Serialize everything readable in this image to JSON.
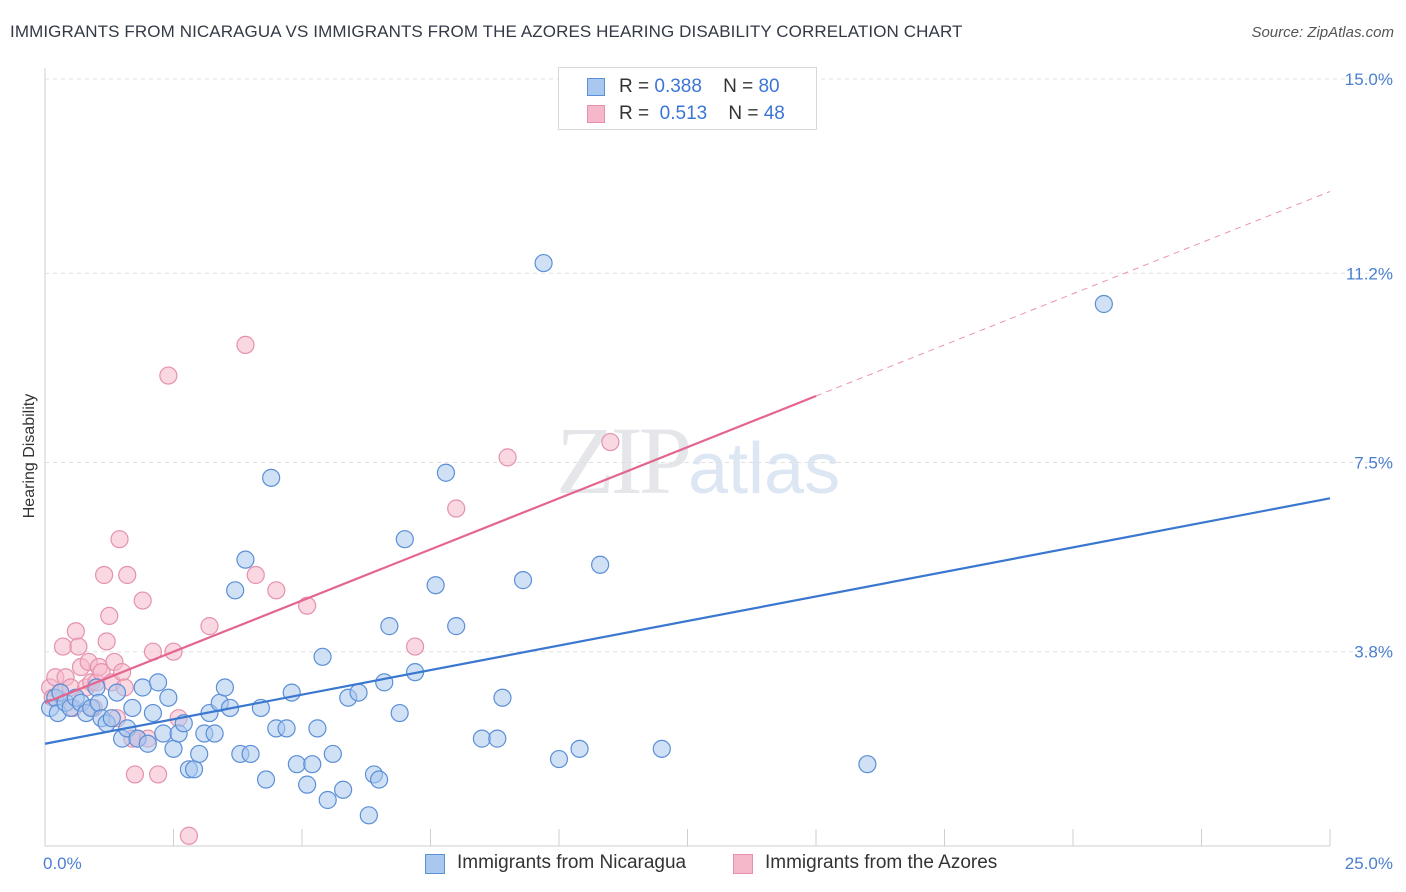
{
  "title": "IMMIGRANTS FROM NICARAGUA VS IMMIGRANTS FROM THE AZORES HEARING DISABILITY CORRELATION CHART",
  "source": "Source: ZipAtlas.com",
  "watermark": {
    "zip": "ZIP",
    "atlas": "atlas"
  },
  "colors": {
    "blue_fill": "#a9c8ef",
    "blue_stroke": "#5b8fd6",
    "blue_line": "#3a77cf",
    "pink_fill": "#f5b8cb",
    "pink_stroke": "#e591ad",
    "pink_line": "#e4658d",
    "grid": "#e0e0e0",
    "tick_text": "#4a7fd0"
  },
  "legend": {
    "rows": [
      {
        "r_label": "R =",
        "r_value": "0.388",
        "n_label": "N =",
        "n_value": "80"
      },
      {
        "r_label": "R =",
        "r_value": "0.513",
        "n_label": "N =",
        "n_value": "48"
      }
    ]
  },
  "bottom_legend": [
    "Immigrants from Nicaragua",
    "Immigrants from the Azores"
  ],
  "chart_data": {
    "type": "scatter",
    "title": "IMMIGRANTS FROM NICARAGUA VS IMMIGRANTS FROM THE AZORES HEARING DISABILITY CORRELATION CHART",
    "xlabel": "",
    "ylabel": "Hearing Disability",
    "xlim": [
      0,
      25
    ],
    "ylim": [
      0,
      15
    ],
    "x_tick_labels": [
      "0.0%",
      "25.0%"
    ],
    "y_ticks": [
      3.8,
      7.5,
      11.2,
      15.0
    ],
    "y_tick_labels": [
      "3.8%",
      "7.5%",
      "11.2%",
      "15.0%"
    ],
    "grid": true,
    "series": [
      {
        "name": "Immigrants from Nicaragua",
        "R": 0.388,
        "N": 80,
        "trend": {
          "x0": 0,
          "y0": 2.0,
          "x1": 25,
          "y1": 6.8,
          "solid_to": 25
        },
        "points": [
          [
            0.1,
            2.7
          ],
          [
            0.2,
            2.9
          ],
          [
            0.25,
            2.6
          ],
          [
            0.3,
            3.0
          ],
          [
            0.4,
            2.8
          ],
          [
            0.5,
            2.7
          ],
          [
            0.6,
            2.9
          ],
          [
            0.7,
            2.8
          ],
          [
            0.8,
            2.6
          ],
          [
            0.9,
            2.7
          ],
          [
            1.0,
            3.1
          ],
          [
            1.05,
            2.8
          ],
          [
            1.1,
            2.5
          ],
          [
            1.2,
            2.4
          ],
          [
            1.3,
            2.5
          ],
          [
            1.4,
            3.0
          ],
          [
            1.5,
            2.1
          ],
          [
            1.6,
            2.3
          ],
          [
            1.7,
            2.7
          ],
          [
            1.8,
            2.1
          ],
          [
            1.9,
            3.1
          ],
          [
            2.0,
            2.0
          ],
          [
            2.1,
            2.6
          ],
          [
            2.2,
            3.2
          ],
          [
            2.3,
            2.2
          ],
          [
            2.4,
            2.9
          ],
          [
            2.5,
            1.9
          ],
          [
            2.6,
            2.2
          ],
          [
            2.7,
            2.4
          ],
          [
            2.8,
            1.5
          ],
          [
            2.9,
            1.5
          ],
          [
            3.0,
            1.8
          ],
          [
            3.1,
            2.2
          ],
          [
            3.2,
            2.6
          ],
          [
            3.3,
            2.2
          ],
          [
            3.4,
            2.8
          ],
          [
            3.5,
            3.1
          ],
          [
            3.6,
            2.7
          ],
          [
            3.7,
            5.0
          ],
          [
            3.8,
            1.8
          ],
          [
            3.9,
            5.6
          ],
          [
            4.0,
            1.8
          ],
          [
            4.2,
            2.7
          ],
          [
            4.3,
            1.3
          ],
          [
            4.4,
            7.2
          ],
          [
            4.5,
            2.3
          ],
          [
            4.7,
            2.3
          ],
          [
            4.8,
            3.0
          ],
          [
            4.9,
            1.6
          ],
          [
            5.1,
            1.2
          ],
          [
            5.2,
            1.6
          ],
          [
            5.3,
            2.3
          ],
          [
            5.4,
            3.7
          ],
          [
            5.5,
            0.9
          ],
          [
            5.6,
            1.8
          ],
          [
            5.8,
            1.1
          ],
          [
            5.9,
            2.9
          ],
          [
            6.1,
            3.0
          ],
          [
            6.3,
            0.6
          ],
          [
            6.4,
            1.4
          ],
          [
            6.5,
            1.3
          ],
          [
            6.6,
            3.2
          ],
          [
            6.7,
            4.3
          ],
          [
            6.9,
            2.6
          ],
          [
            7.0,
            6.0
          ],
          [
            7.2,
            3.4
          ],
          [
            7.6,
            5.1
          ],
          [
            7.8,
            7.3
          ],
          [
            8.0,
            4.3
          ],
          [
            8.5,
            2.1
          ],
          [
            8.8,
            2.1
          ],
          [
            8.9,
            2.9
          ],
          [
            9.3,
            5.2
          ],
          [
            9.7,
            11.4
          ],
          [
            10.0,
            1.7
          ],
          [
            10.4,
            1.9
          ],
          [
            10.8,
            5.5
          ],
          [
            12.0,
            1.9
          ],
          [
            16.0,
            1.6
          ],
          [
            20.6,
            10.6
          ]
        ]
      },
      {
        "name": "Immigrants from the Azores",
        "R": 0.513,
        "N": 48,
        "trend": {
          "x0": 0,
          "y0": 2.8,
          "x1": 25,
          "y1": 12.8,
          "solid_to": 15
        },
        "points": [
          [
            0.1,
            3.1
          ],
          [
            0.15,
            2.9
          ],
          [
            0.2,
            3.3
          ],
          [
            0.3,
            3.0
          ],
          [
            0.35,
            3.9
          ],
          [
            0.4,
            3.3
          ],
          [
            0.5,
            3.1
          ],
          [
            0.55,
            2.7
          ],
          [
            0.6,
            4.2
          ],
          [
            0.65,
            3.9
          ],
          [
            0.7,
            3.5
          ],
          [
            0.8,
            3.1
          ],
          [
            0.85,
            3.6
          ],
          [
            0.9,
            3.2
          ],
          [
            0.95,
            2.7
          ],
          [
            1.0,
            3.2
          ],
          [
            1.05,
            3.5
          ],
          [
            1.1,
            3.4
          ],
          [
            1.15,
            5.3
          ],
          [
            1.2,
            4.0
          ],
          [
            1.25,
            4.5
          ],
          [
            1.3,
            3.2
          ],
          [
            1.35,
            3.6
          ],
          [
            1.4,
            2.5
          ],
          [
            1.45,
            6.0
          ],
          [
            1.5,
            3.4
          ],
          [
            1.55,
            3.1
          ],
          [
            1.6,
            5.3
          ],
          [
            1.7,
            2.1
          ],
          [
            1.75,
            1.4
          ],
          [
            1.8,
            2.1
          ],
          [
            1.9,
            4.8
          ],
          [
            2.0,
            2.1
          ],
          [
            2.1,
            3.8
          ],
          [
            2.2,
            1.4
          ],
          [
            2.4,
            9.2
          ],
          [
            2.5,
            3.8
          ],
          [
            2.6,
            2.5
          ],
          [
            2.8,
            0.2
          ],
          [
            3.2,
            4.3
          ],
          [
            3.9,
            9.8
          ],
          [
            4.1,
            5.3
          ],
          [
            4.5,
            5.0
          ],
          [
            5.1,
            4.7
          ],
          [
            7.2,
            3.9
          ],
          [
            8.0,
            6.6
          ],
          [
            9.0,
            7.6
          ],
          [
            11.0,
            7.9
          ]
        ]
      }
    ]
  }
}
